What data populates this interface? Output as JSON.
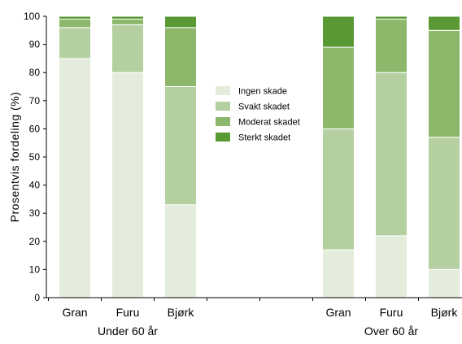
{
  "chart_data": {
    "type": "bar",
    "stacked": true,
    "ylabel": "Prosentvis fordeling (%)",
    "ylim": [
      0,
      100
    ],
    "yticks": [
      0,
      10,
      20,
      30,
      40,
      50,
      60,
      70,
      80,
      90,
      100
    ],
    "grid": false,
    "legend_position": "center",
    "groups": [
      {
        "label": "Under 60 år",
        "categories": [
          "Gran",
          "Furu",
          "Bjørk"
        ]
      },
      {
        "label": "Over 60 år",
        "categories": [
          "Gran",
          "Furu",
          "Bjørk"
        ]
      }
    ],
    "categories": [
      "Gran",
      "Furu",
      "Bjørk",
      "Gran",
      "Furu",
      "Bjørk"
    ],
    "series": [
      {
        "name": "Ingen skade",
        "color": "#e4eddc",
        "values": [
          85,
          80,
          33,
          17,
          22,
          10
        ]
      },
      {
        "name": "Svakt skadet",
        "color": "#b5d0a0",
        "values": [
          11,
          17,
          42,
          43,
          58,
          47
        ]
      },
      {
        "name": "Moderat skadet",
        "color": "#8db86c",
        "values": [
          3,
          2,
          21,
          29,
          19,
          38
        ]
      },
      {
        "name": "Sterkt skadet",
        "color": "#589933",
        "values": [
          1,
          1,
          4,
          11,
          1,
          5
        ]
      }
    ]
  }
}
